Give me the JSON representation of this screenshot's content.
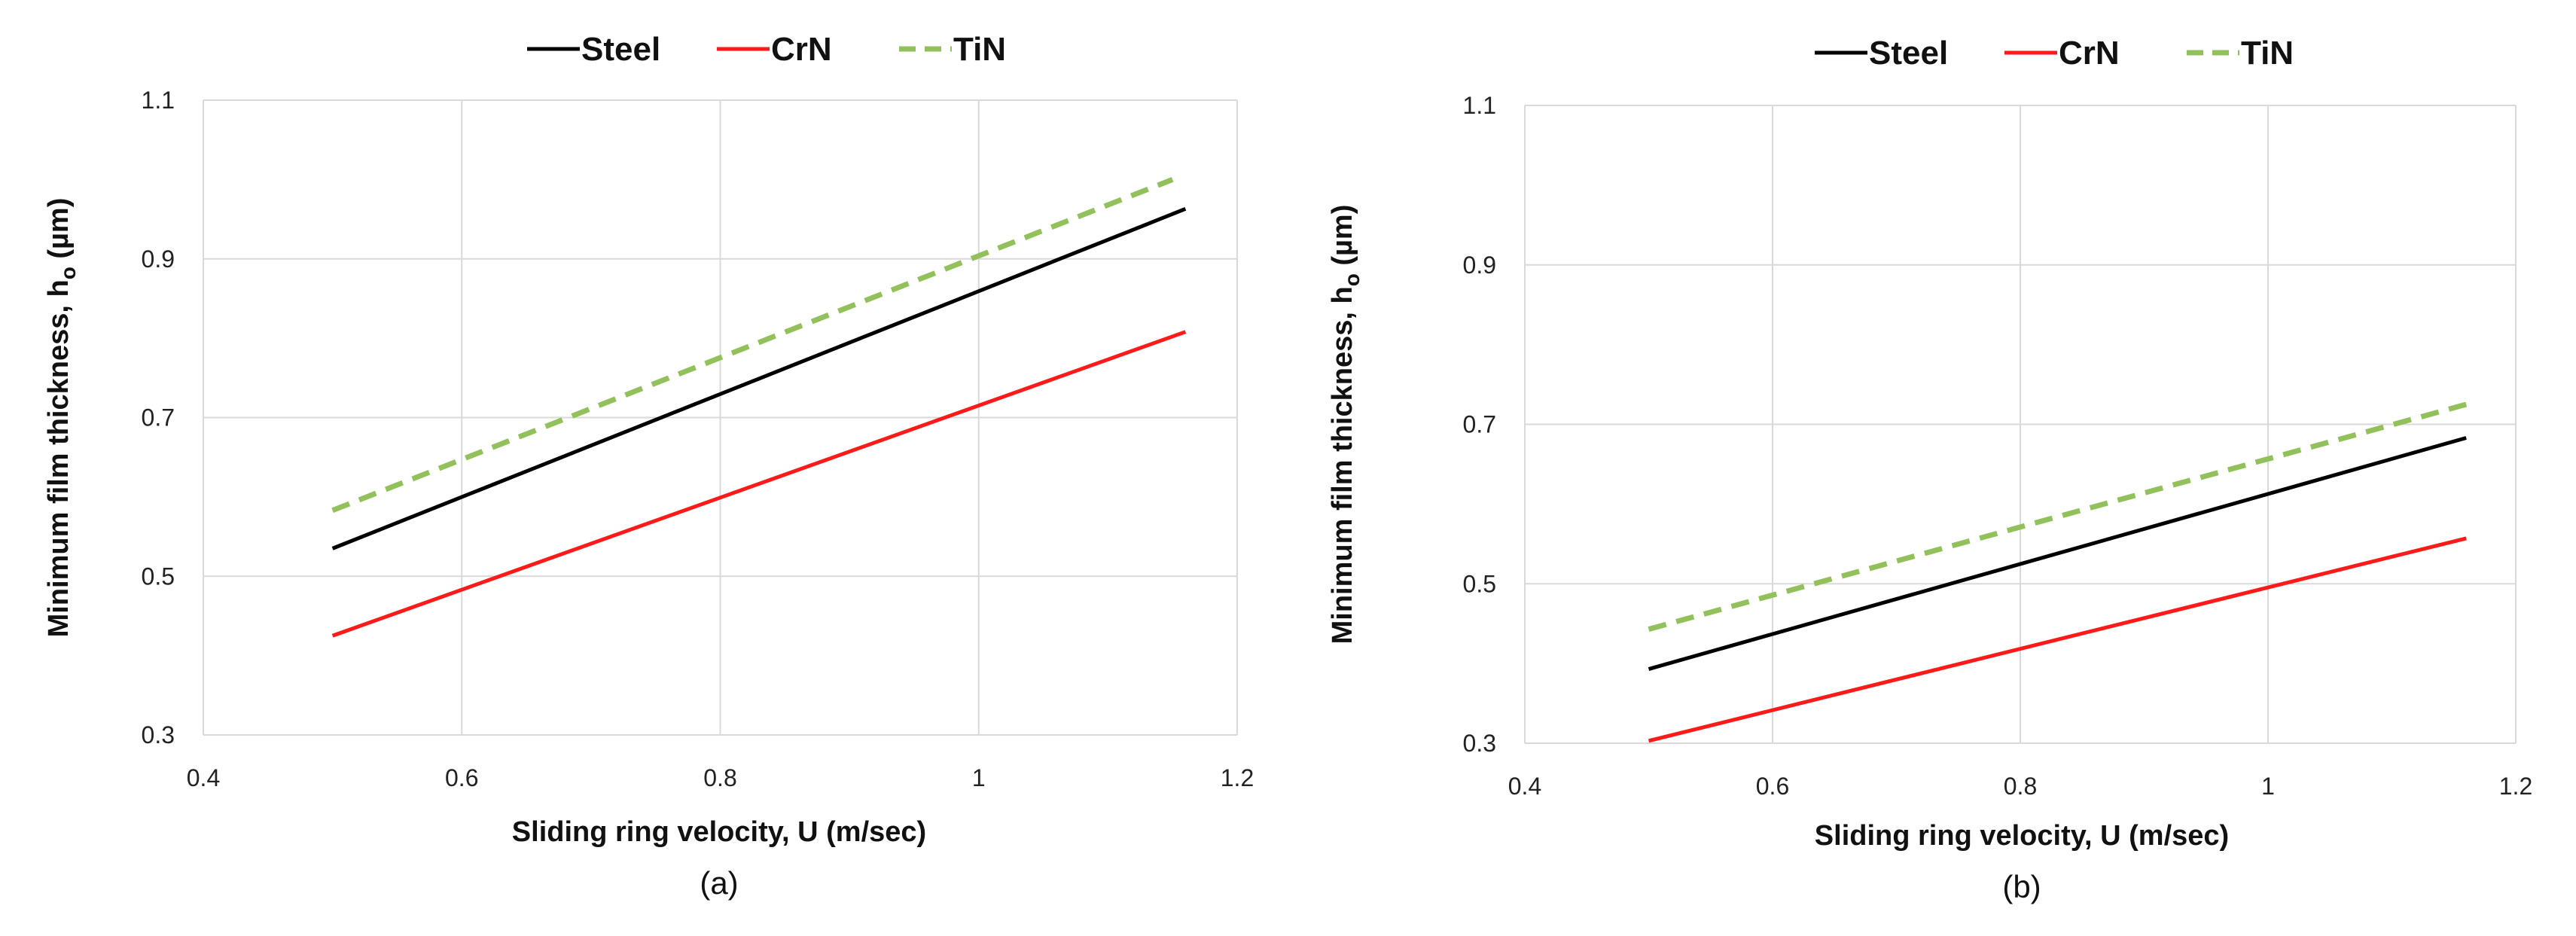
{
  "chart_data": [
    {
      "type": "line",
      "caption": "(a)",
      "xlabel": "Sliding ring velocity, U (m/sec)",
      "ylabel": "Minimum film thickness, h",
      "ylabel_sub": "o",
      "ylabel_unit": " (µm)",
      "xlim": [
        0.4,
        1.2
      ],
      "ylim": [
        0.3,
        1.1
      ],
      "xticks": [
        0.4,
        0.6,
        0.8,
        1.0,
        1.2
      ],
      "xtick_labels": [
        "0.4",
        "0.6",
        "0.8",
        "1",
        "1.2"
      ],
      "yticks": [
        0.3,
        0.5,
        0.7,
        0.9,
        1.1
      ],
      "ytick_labels": [
        "0.3",
        "0.5",
        "0.7",
        "0.9",
        "1.1"
      ],
      "grid": true,
      "legend_position": "top-center",
      "series": [
        {
          "name": "Steel",
          "color": "#000000",
          "dash": false,
          "x": [
            0.5,
            1.16
          ],
          "y": [
            0.535,
            0.963
          ]
        },
        {
          "name": "CrN",
          "color": "#ff1a1a",
          "dash": false,
          "x": [
            0.5,
            1.16
          ],
          "y": [
            0.425,
            0.808
          ]
        },
        {
          "name": "TiN",
          "color": "#92c15c",
          "dash": true,
          "x": [
            0.5,
            1.15
          ],
          "y": [
            0.583,
            1.0
          ]
        }
      ]
    },
    {
      "type": "line",
      "caption": "(b)",
      "xlabel": "Sliding ring velocity, U (m/sec)",
      "ylabel": "Minimum film thickness, h",
      "ylabel_sub": "o",
      "ylabel_unit": " (µm)",
      "xlim": [
        0.4,
        1.2
      ],
      "ylim": [
        0.3,
        1.1
      ],
      "xticks": [
        0.4,
        0.6,
        0.8,
        1.0,
        1.2
      ],
      "xtick_labels": [
        "0.4",
        "0.6",
        "0.8",
        "1",
        "1.2"
      ],
      "yticks": [
        0.3,
        0.5,
        0.7,
        0.9,
        1.1
      ],
      "ytick_labels": [
        "0.3",
        "0.5",
        "0.7",
        "0.9",
        "1.1"
      ],
      "grid": true,
      "legend_position": "top-center",
      "series": [
        {
          "name": "Steel",
          "color": "#000000",
          "dash": false,
          "x": [
            0.5,
            1.16
          ],
          "y": [
            0.393,
            0.683
          ]
        },
        {
          "name": "CrN",
          "color": "#ff1a1a",
          "dash": false,
          "x": [
            0.5,
            1.16
          ],
          "y": [
            0.303,
            0.557
          ]
        },
        {
          "name": "TiN",
          "color": "#92c15c",
          "dash": true,
          "x": [
            0.5,
            1.16
          ],
          "y": [
            0.443,
            0.725
          ]
        }
      ]
    }
  ]
}
